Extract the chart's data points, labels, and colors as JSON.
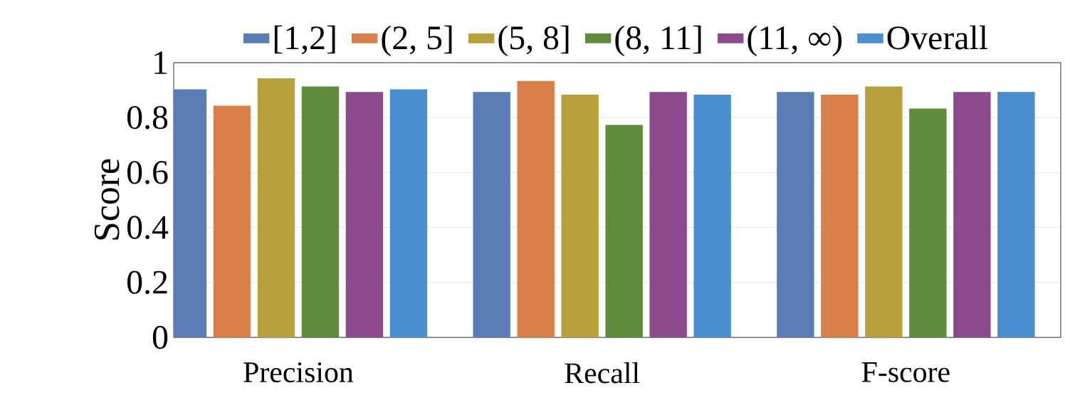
{
  "chart_data": {
    "type": "bar",
    "ylabel": "Score",
    "categories": [
      "Precision",
      "Recall",
      "F-score"
    ],
    "series": [
      {
        "name": "[1,2]",
        "color": "#5a7db5",
        "values": [
          0.9,
          0.89,
          0.89
        ]
      },
      {
        "name": "(2, 5]",
        "color": "#d9804a",
        "values": [
          0.84,
          0.93,
          0.88
        ]
      },
      {
        "name": "(5, 8]",
        "color": "#b8a03c",
        "values": [
          0.94,
          0.88,
          0.91
        ]
      },
      {
        "name": "(8, 11]",
        "color": "#5f8c3c",
        "values": [
          0.91,
          0.77,
          0.83
        ]
      },
      {
        "name": "(11, ∞)",
        "color": "#8a4a8c",
        "values": [
          0.89,
          0.89,
          0.89
        ]
      },
      {
        "name": "Overall",
        "color": "#4a8ed0",
        "values": [
          0.9,
          0.88,
          0.89
        ]
      }
    ],
    "ylim": [
      0,
      1
    ],
    "yticks": [
      0,
      0.2,
      0.4,
      0.6,
      0.8,
      1
    ],
    "grid": "y",
    "legend": "top"
  }
}
